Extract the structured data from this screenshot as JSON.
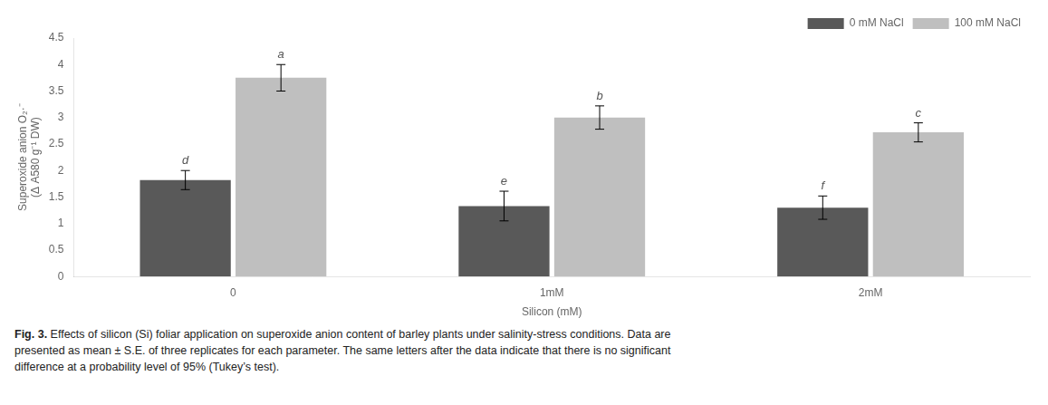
{
  "chart_data": {
    "type": "bar",
    "categories": [
      "0",
      "1mM",
      "2mM"
    ],
    "series": [
      {
        "name": "0 mM NaCl",
        "color": "#595959",
        "values": [
          1.82,
          1.33,
          1.3
        ],
        "errors": [
          0.18,
          0.28,
          0.22
        ],
        "letters": [
          "d",
          "e",
          "f"
        ]
      },
      {
        "name": "100 mM NaCl",
        "color": "#bfbfbf",
        "values": [
          3.75,
          3.0,
          2.72
        ],
        "errors": [
          0.25,
          0.22,
          0.18
        ],
        "letters": [
          "a",
          "b",
          "c"
        ]
      }
    ],
    "xlabel": "Silicon (mM)",
    "ylabel": [
      "Superoxide anion O₂·⁻",
      "(Δ A580 g⁻¹ DW)"
    ],
    "ylim": [
      0,
      4.5
    ],
    "yticks": [
      0,
      0.5,
      1,
      1.5,
      2,
      2.5,
      3,
      3.5,
      4,
      4.5
    ],
    "grid": false,
    "legend": "upper right",
    "caption": {
      "bold": "Fig. 3.",
      "lines": [
        "Effects of silicon (Si) foliar application on superoxide anion content of barley plants under salinity-stress conditions. Data are",
        "presented as mean ± S.E. of three replicates for each parameter. The same letters after the data indicate that there is no significant",
        "difference at a probability level of 95% (Tukey’s test)."
      ]
    }
  }
}
